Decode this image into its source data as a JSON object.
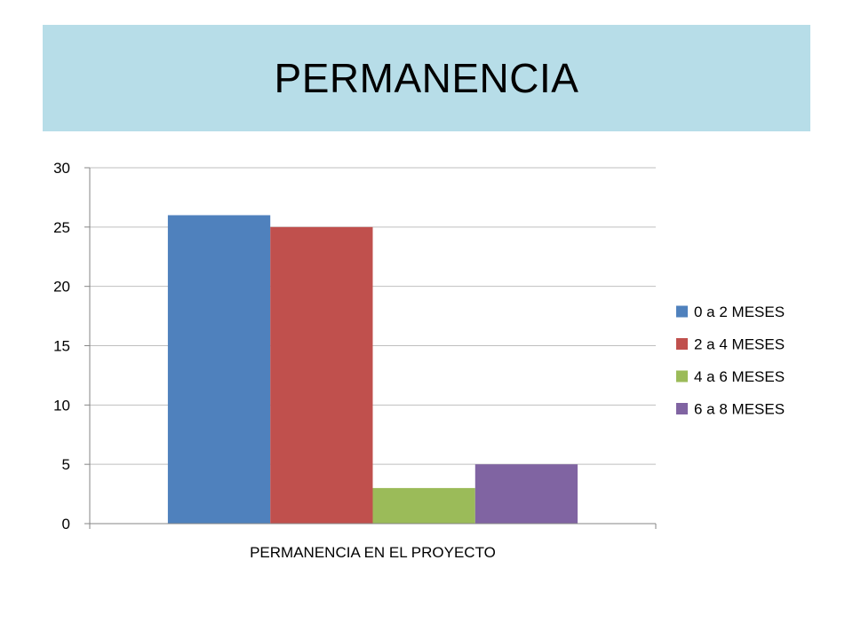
{
  "slide": {
    "title": "PERMANENCIA"
  },
  "colors": {
    "title_band": "#b7dde8",
    "gridline": "#bfbfbf",
    "axis": "#868686"
  },
  "chart_data": {
    "type": "bar",
    "title": "",
    "categories": [
      "PERMANENCIA EN EL PROYECTO"
    ],
    "xlabel": "",
    "ylabel": "",
    "ylim": [
      0,
      30
    ],
    "yticks": [
      0,
      5,
      10,
      15,
      20,
      25,
      30
    ],
    "grid": true,
    "legend_position": "right",
    "series": [
      {
        "name": "0 a 2 MESES",
        "values": [
          26
        ],
        "color": "#4f81bd"
      },
      {
        "name": "2 a 4 MESES",
        "values": [
          25
        ],
        "color": "#c0504d"
      },
      {
        "name": "4 a 6 MESES",
        "values": [
          3
        ],
        "color": "#9bbb59"
      },
      {
        "name": "6 a 8 MESES",
        "values": [
          5
        ],
        "color": "#8064a2"
      }
    ]
  }
}
